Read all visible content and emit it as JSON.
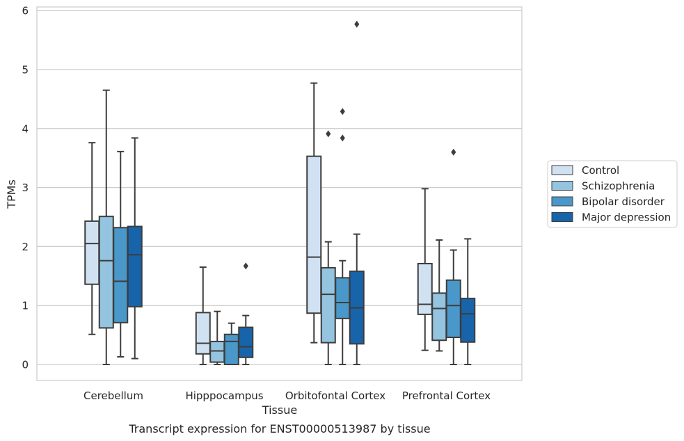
{
  "chart_data": {
    "type": "box",
    "caption": "Transcript expression for ENST00000513987 by tissue",
    "xlabel": "Tissue",
    "ylabel": "TPMs",
    "ylim": [
      -0.28,
      6.1
    ],
    "yticks": [
      0,
      1,
      2,
      3,
      4,
      5,
      6
    ],
    "grid": "horizontal",
    "legend_position": "right",
    "categories": [
      "Cerebellum",
      "Hipppocampus",
      "Orbitofontal Cortex",
      "Prefrontal Cortex"
    ],
    "series": [
      {
        "name": "Control",
        "color": "#d0e1f2",
        "boxes": [
          {
            "whisker_low": 0.51,
            "q1": 1.36,
            "median": 2.05,
            "q3": 2.43,
            "whisker_high": 3.76,
            "outliers": []
          },
          {
            "whisker_low": 0.0,
            "q1": 0.18,
            "median": 0.36,
            "q3": 0.88,
            "whisker_high": 1.65,
            "outliers": []
          },
          {
            "whisker_low": 0.37,
            "q1": 0.87,
            "median": 1.82,
            "q3": 3.53,
            "whisker_high": 4.77,
            "outliers": []
          },
          {
            "whisker_low": 0.24,
            "q1": 0.85,
            "median": 1.02,
            "q3": 1.71,
            "whisker_high": 2.98,
            "outliers": []
          }
        ]
      },
      {
        "name": "Schizophrenia",
        "color": "#94c4df",
        "boxes": [
          {
            "whisker_low": 0.0,
            "q1": 0.62,
            "median": 1.76,
            "q3": 2.51,
            "whisker_high": 4.65,
            "outliers": []
          },
          {
            "whisker_low": 0.0,
            "q1": 0.04,
            "median": 0.23,
            "q3": 0.39,
            "whisker_high": 0.9,
            "outliers": []
          },
          {
            "whisker_low": 0.0,
            "q1": 0.37,
            "median": 1.19,
            "q3": 1.64,
            "whisker_high": 2.08,
            "outliers": [
              3.91
            ]
          },
          {
            "whisker_low": 0.23,
            "q1": 0.41,
            "median": 0.95,
            "q3": 1.21,
            "whisker_high": 2.11,
            "outliers": []
          }
        ]
      },
      {
        "name": "Bipolar disorder",
        "color": "#4a98c9",
        "boxes": [
          {
            "whisker_low": 0.13,
            "q1": 0.71,
            "median": 1.41,
            "q3": 2.32,
            "whisker_high": 3.61,
            "outliers": []
          },
          {
            "whisker_low": 0.0,
            "q1": 0.0,
            "median": 0.39,
            "q3": 0.51,
            "whisker_high": 0.7,
            "outliers": []
          },
          {
            "whisker_low": 0.0,
            "q1": 0.78,
            "median": 1.05,
            "q3": 1.47,
            "whisker_high": 1.76,
            "outliers": [
              3.84,
              4.29
            ]
          },
          {
            "whisker_low": 0.0,
            "q1": 0.46,
            "median": 1.0,
            "q3": 1.43,
            "whisker_high": 1.94,
            "outliers": [
              3.6
            ]
          }
        ]
      },
      {
        "name": "Major depression",
        "color": "#1764ab",
        "boxes": [
          {
            "whisker_low": 0.1,
            "q1": 0.98,
            "median": 1.86,
            "q3": 2.34,
            "whisker_high": 3.84,
            "outliers": []
          },
          {
            "whisker_low": 0.0,
            "q1": 0.12,
            "median": 0.3,
            "q3": 0.63,
            "whisker_high": 0.83,
            "outliers": [
              1.67
            ]
          },
          {
            "whisker_low": 0.0,
            "q1": 0.35,
            "median": 0.96,
            "q3": 1.58,
            "whisker_high": 2.21,
            "outliers": [
              5.77
            ]
          },
          {
            "whisker_low": 0.0,
            "q1": 0.38,
            "median": 0.86,
            "q3": 1.12,
            "whisker_high": 2.13,
            "outliers": []
          }
        ]
      }
    ]
  }
}
